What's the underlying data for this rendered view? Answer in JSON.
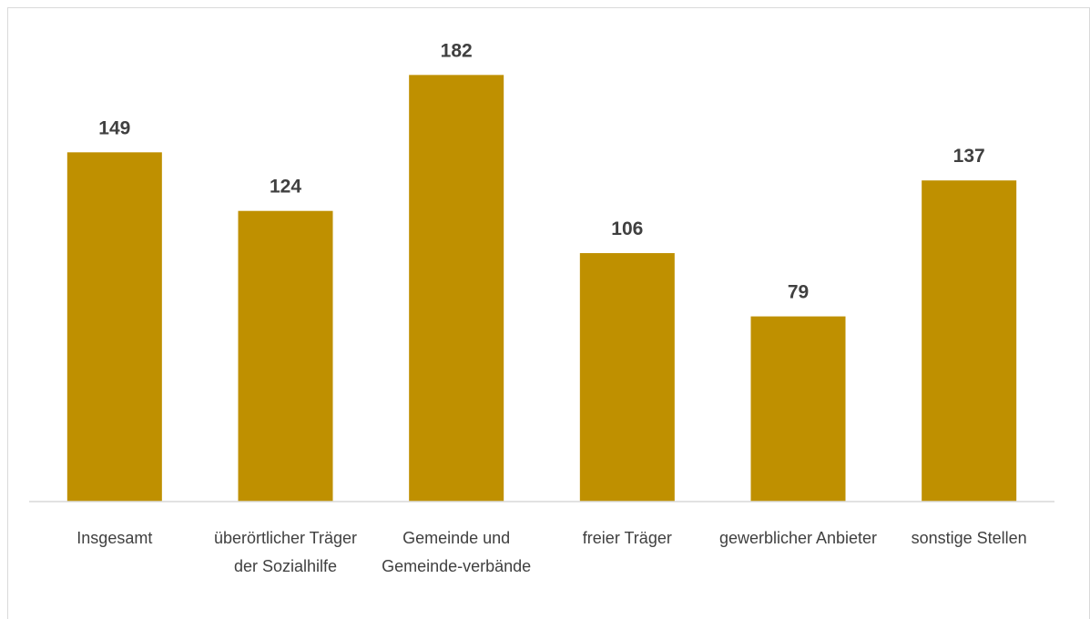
{
  "chart_data": {
    "type": "bar",
    "categories": [
      "Insgesamt",
      "überörtlicher Träger der Sozialhilfe",
      "Gemeinde und Gemeinde-verbände",
      "freier Träger",
      "gewerblicher Anbieter",
      "sonstige Stellen"
    ],
    "values": [
      149,
      124,
      182,
      106,
      79,
      137
    ],
    "color": "#bf9000",
    "ylim": [
      0,
      200
    ]
  }
}
